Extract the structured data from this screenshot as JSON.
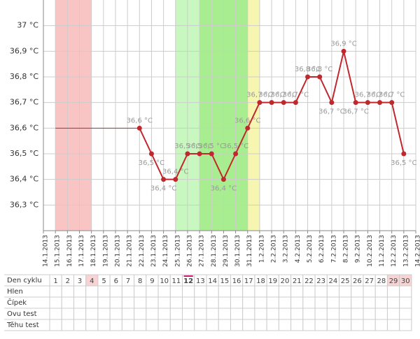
{
  "chart_data": {
    "type": "line",
    "categories": [
      "14.1.2013",
      "15.1.2013",
      "16.1.2013",
      "17.1.2013",
      "18.1.2013",
      "19.1.2013",
      "20.1.2013",
      "21.1.2013",
      "22.1.2013",
      "23.1.2013",
      "24.1.2013",
      "25.1.2013",
      "26.1.2013",
      "27.1.2013",
      "28.1.2013",
      "29.1.2013",
      "30.1.2013",
      "31.1.2013",
      "1.2.2013",
      "2.2.2013",
      "3.2.2013",
      "4.2.2013",
      "5.2.2013",
      "6.2.2013",
      "7.2.2013",
      "8.2.2013",
      "9.2.2013",
      "10.2.2013",
      "11.2.2013",
      "12.2.2013",
      "13.2.2013",
      "14.2.2013"
    ],
    "series": [
      {
        "color": "#c0282d",
        "thin": true,
        "values": [
          null,
          36.6,
          36.6,
          36.6,
          36.6,
          36.6,
          36.6,
          36.6,
          36.6,
          null,
          null,
          null,
          null,
          null,
          null,
          null,
          null,
          null,
          null,
          null,
          null,
          null,
          null,
          null,
          null,
          null,
          null,
          null,
          null,
          null,
          null,
          null
        ]
      },
      {
        "color": "#c0282d",
        "values": [
          null,
          null,
          null,
          null,
          null,
          null,
          null,
          null,
          36.6,
          36.5,
          36.4,
          36.4,
          36.5,
          36.5,
          36.5,
          36.4,
          36.5,
          36.6,
          36.7,
          36.7,
          36.7,
          36.7,
          36.8,
          36.8,
          36.7,
          36.9,
          36.7,
          36.7,
          36.7,
          36.7,
          36.5,
          null
        ],
        "value_labels": [
          null,
          null,
          null,
          null,
          null,
          null,
          null,
          null,
          "36,6 °C",
          "36,5 °C",
          "36,4 °C",
          "36,4 °C",
          "36,5 °C",
          "36,5 °C",
          "36,5 °C",
          "36,4 °C",
          "36,5 °C",
          "36,6 °C",
          "36,7 °C",
          "36,7 °C",
          "36,7 °C",
          "36,7 °C",
          "36,8 °C",
          "36,8 °C",
          "36,7 °C",
          "36,9 °C",
          "36,7 °C",
          "36,7 °C",
          "36,7 °C",
          "36,7 °C",
          "36,5 °C",
          null
        ]
      }
    ],
    "bands": [
      {
        "from": "15.1.2013",
        "to": "18.1.2013",
        "color": "#f9c4c4"
      },
      {
        "from": "25.1.2013",
        "to": "27.1.2013",
        "color": "#c8f7c0"
      },
      {
        "from": "27.1.2013",
        "to": "31.1.2013",
        "color": "#a8ee90"
      },
      {
        "from": "31.1.2013",
        "to": "1.2.2013",
        "color": "#f6f6b0"
      }
    ],
    "ylim": [
      36.2,
      37.1
    ],
    "yticks": [
      {
        "value": 36.3,
        "label": "36,3 °C"
      },
      {
        "value": 36.4,
        "label": "36,4 °C"
      },
      {
        "value": 36.5,
        "label": "36,5 °C"
      },
      {
        "value": 36.6,
        "label": "36,6 °C"
      },
      {
        "value": 36.7,
        "label": "36,7 °C"
      },
      {
        "value": 36.8,
        "label": "36,8 °C"
      },
      {
        "value": 36.9,
        "label": "36,9 °C"
      },
      {
        "value": 37,
        "label": "37 °C"
      }
    ],
    "grid": true
  },
  "table": {
    "rows": [
      {
        "label": "Den cyklu",
        "cells": [
          "1",
          "2",
          "3",
          "4",
          "5",
          "6",
          "7",
          "8",
          "9",
          "10",
          "11",
          "12",
          "13",
          "14",
          "15",
          "16",
          "17",
          "18",
          "19",
          "20",
          "21",
          "22",
          "23",
          "24",
          "25",
          "26",
          "27",
          "28",
          "29",
          "30"
        ]
      },
      {
        "label": "Hlen"
      },
      {
        "label": "Čípek"
      },
      {
        "label": "Ovu test"
      },
      {
        "label": "Těhu test"
      }
    ],
    "highlighted": [
      "4",
      "29",
      "30"
    ],
    "current": "12",
    "columns": 30
  }
}
